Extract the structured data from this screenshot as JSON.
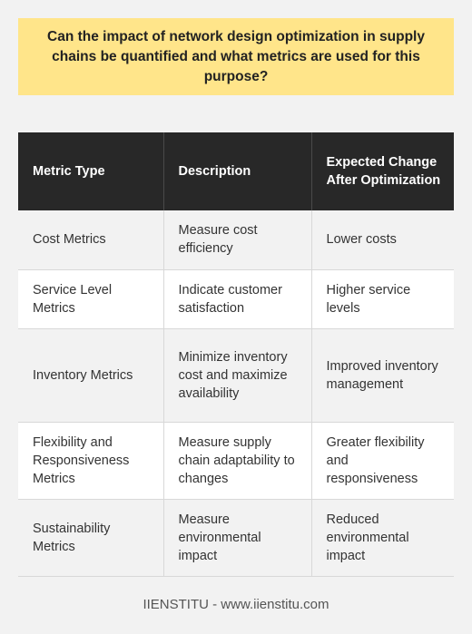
{
  "question": "Can the impact of network design optimization in supply chains be quantified and what metrics are used for this purpose?",
  "table": {
    "headers": [
      "Metric Type",
      "Description",
      "Expected Change After Optimization"
    ],
    "rows": [
      [
        "Cost Metrics",
        "Measure cost efficiency",
        "Lower costs"
      ],
      [
        "Service Level Metrics",
        "Indicate customer satisfaction",
        "Higher service levels"
      ],
      [
        "Inventory Metrics",
        "Minimize inventory cost and maximize availability",
        "Improved inventory management"
      ],
      [
        "Flexibility and Responsiveness Metrics",
        "Measure supply chain adaptability to changes",
        "Greater flexibility and responsiveness"
      ],
      [
        "Sustainability Metrics",
        "Measure environmental impact",
        "Reduced environmental impact"
      ]
    ]
  },
  "footer": "IIENSTITU - www.iienstitu.com"
}
